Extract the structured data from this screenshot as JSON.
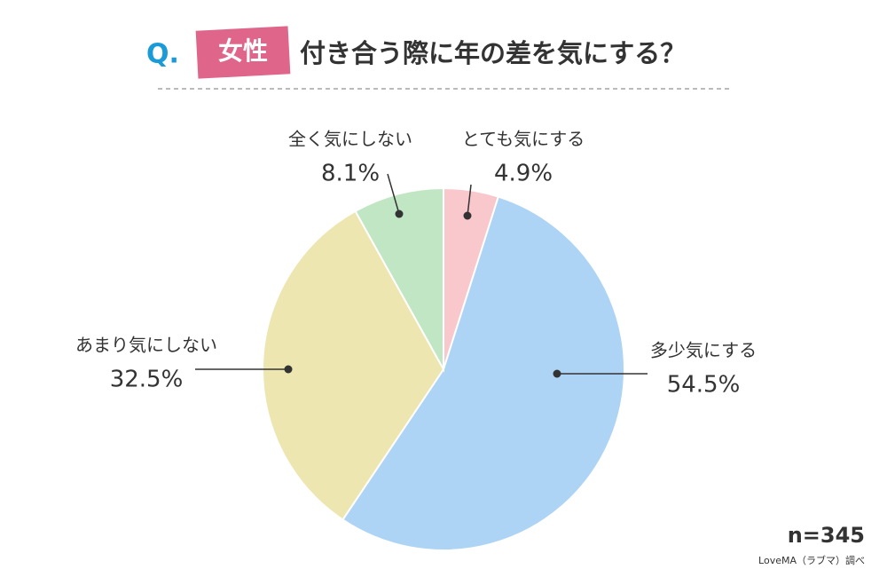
{
  "chart_data": {
    "type": "pie",
    "title_prefix": "Q.",
    "title_tag": "女性",
    "title": "付き合う際に年の差を気にする？",
    "categories": [
      "とても気にする",
      "多少気にする",
      "あまり気にしない",
      "全く気にしない"
    ],
    "values": [
      4.9,
      54.5,
      32.5,
      8.1
    ],
    "value_labels": [
      "4.9%",
      "54.5%",
      "32.5%",
      "8.1%"
    ],
    "colors": [
      "#f9c8cc",
      "#aed4f5",
      "#ede6b0",
      "#c1e6c3"
    ],
    "note": "n=345",
    "source": "LoveMA（ラブマ）調べ"
  }
}
